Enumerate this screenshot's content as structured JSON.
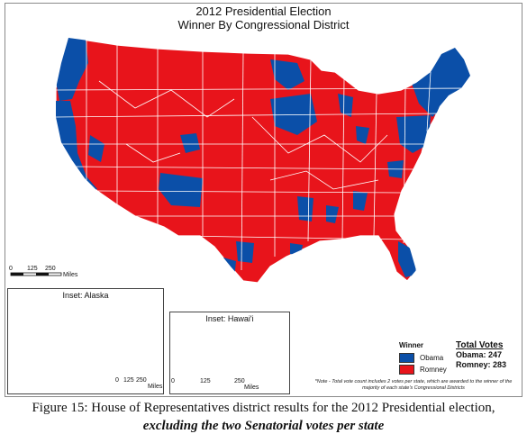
{
  "map": {
    "title_line1": "2012 Presidential Election",
    "title_line2": "Winner By Congressional District",
    "scale_main": {
      "ticks": [
        "0",
        "125",
        "250"
      ],
      "unit": "Miles"
    },
    "inset_alaska": {
      "title": "Inset: Alaska",
      "scale_ticks": [
        "0",
        "125",
        "250"
      ],
      "scale_unit": "Miles"
    },
    "inset_hawaii": {
      "title": "Inset: Hawai'i",
      "scale_ticks": [
        "0",
        "125",
        "250"
      ],
      "scale_unit": "Miles"
    },
    "legend": {
      "title": "Winner",
      "items": [
        {
          "label": "Obama",
          "color": "#0b4fa8"
        },
        {
          "label": "Romney",
          "color": "#e8141b"
        }
      ]
    },
    "totals": {
      "header": "Total Votes",
      "obama": "Obama: 247",
      "romney": "Romney: 283"
    },
    "note": "*Note - Total vote count includes 2 votes per state, which are awarded to the winner of the majority of each state's Congressional Districts"
  },
  "caption": {
    "line1": "Figure 15: House of Representatives district results for the 2012 Presidential election,",
    "line2": "excluding the two Senatorial votes per state"
  }
}
